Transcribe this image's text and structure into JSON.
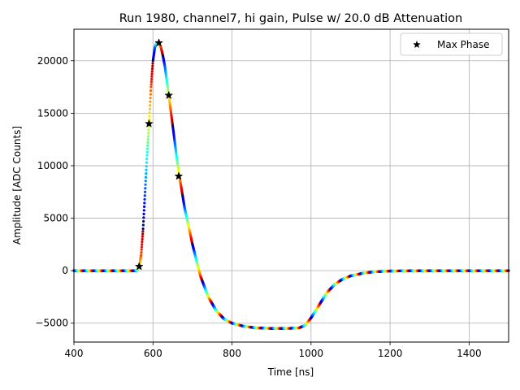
{
  "chart_data": {
    "type": "scatter",
    "title": "Run 1980, channel7, hi gain, Pulse w/ 20.0 dB Attenuation",
    "xlabel": "Time [ns]",
    "ylabel": "Amplitude [ADC Counts]",
    "xlim": [
      400,
      1500
    ],
    "ylim": [
      -6800,
      23000
    ],
    "xticks": [
      400,
      600,
      800,
      1000,
      1200,
      1400
    ],
    "yticks": [
      -5000,
      0,
      5000,
      10000,
      15000,
      20000
    ],
    "ytick_labels": [
      "−5000",
      "0",
      "5000",
      "10000",
      "15000",
      "20000"
    ],
    "grid": true,
    "legend": {
      "position": "top-right",
      "entries": [
        {
          "label": "Max Phase",
          "marker": "star",
          "color": "#000000"
        }
      ]
    },
    "colormap": "jet",
    "waveform_samples": [
      [
        400,
        0
      ],
      [
        560,
        0
      ],
      [
        565,
        300
      ],
      [
        570,
        1500
      ],
      [
        575,
        4000
      ],
      [
        580,
        7500
      ],
      [
        585,
        11000
      ],
      [
        590,
        14000
      ],
      [
        595,
        17500
      ],
      [
        600,
        20000
      ],
      [
        605,
        21300
      ],
      [
        610,
        21700
      ],
      [
        615,
        21700
      ],
      [
        620,
        21300
      ],
      [
        625,
        20500
      ],
      [
        630,
        19500
      ],
      [
        640,
        16700
      ],
      [
        650,
        13800
      ],
      [
        660,
        10800
      ],
      [
        667,
        9000
      ],
      [
        680,
        6000
      ],
      [
        700,
        2500
      ],
      [
        720,
        -500
      ],
      [
        740,
        -2500
      ],
      [
        760,
        -3800
      ],
      [
        780,
        -4600
      ],
      [
        800,
        -5000
      ],
      [
        830,
        -5300
      ],
      [
        860,
        -5450
      ],
      [
        900,
        -5500
      ],
      [
        940,
        -5500
      ],
      [
        970,
        -5450
      ],
      [
        985,
        -5200
      ],
      [
        1000,
        -4500
      ],
      [
        1020,
        -3300
      ],
      [
        1040,
        -2100
      ],
      [
        1060,
        -1300
      ],
      [
        1080,
        -800
      ],
      [
        1100,
        -500
      ],
      [
        1130,
        -250
      ],
      [
        1160,
        -100
      ],
      [
        1200,
        -30
      ],
      [
        1300,
        0
      ],
      [
        1500,
        0
      ]
    ],
    "series": [
      {
        "name": "Max Phase",
        "points": [
          [
            565,
            400
          ],
          [
            590,
            14000
          ],
          [
            615,
            21700
          ],
          [
            640,
            16700
          ],
          [
            665,
            9000
          ]
        ]
      }
    ]
  }
}
